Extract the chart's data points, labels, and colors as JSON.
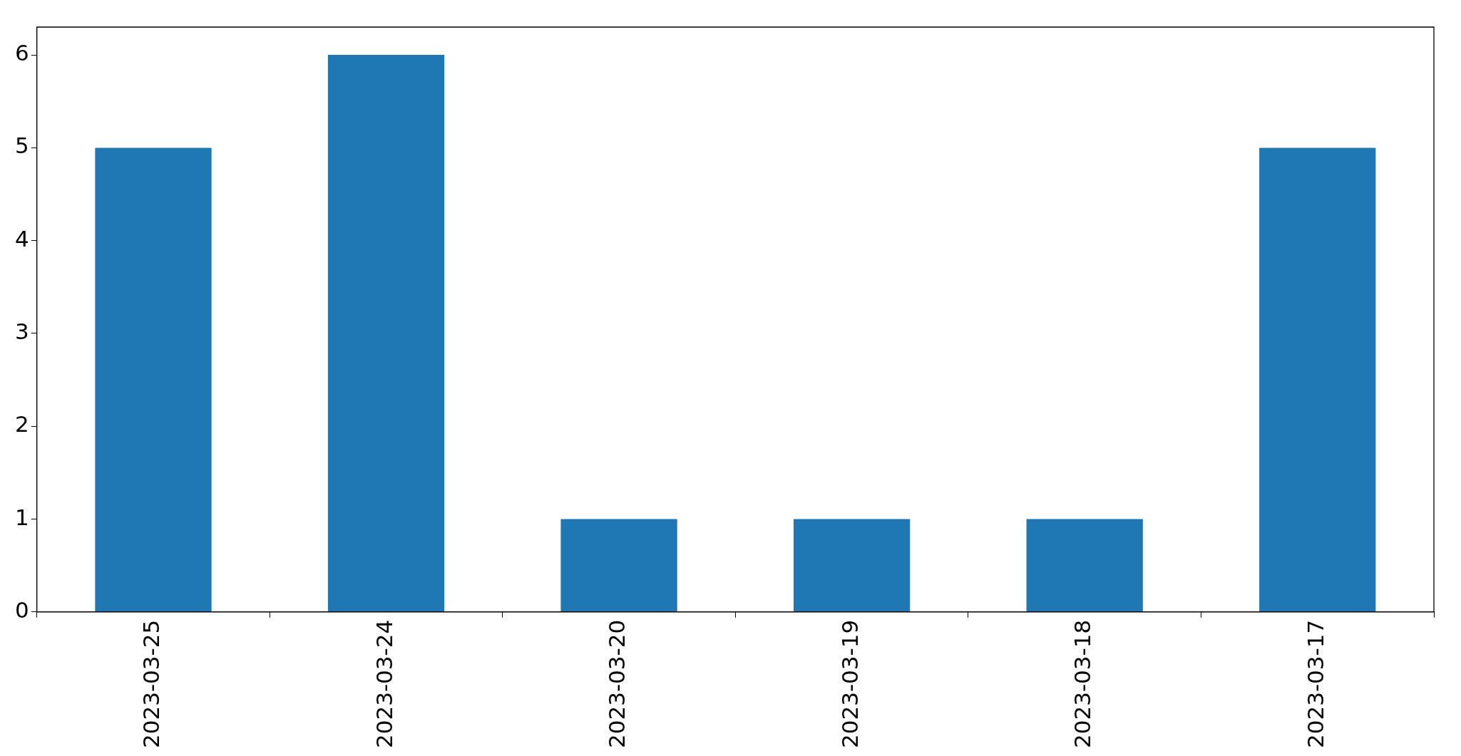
{
  "chart_data": {
    "type": "bar",
    "categories": [
      "2023-03-25",
      "2023-03-24",
      "2023-03-20",
      "2023-03-19",
      "2023-03-18",
      "2023-03-17"
    ],
    "values": [
      5,
      6,
      1,
      1,
      1,
      5
    ],
    "color": "#1f77b4",
    "ylim": [
      0,
      6.3
    ],
    "yticks": [
      0,
      1,
      2,
      3,
      4,
      5,
      6
    ],
    "grid": false,
    "legend": false
  }
}
